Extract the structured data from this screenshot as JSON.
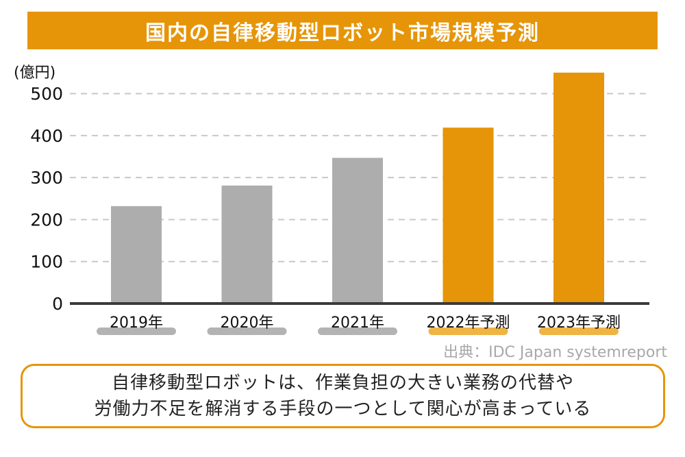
{
  "title": "国内の自律移動型ロボット市場規模予測",
  "unit": "(億円)",
  "source": "出典：IDC Japan systemreport",
  "callout": {
    "line1": "自律移動型ロボットは、作業負担の大きい業務の代替や",
    "line2": "労働力不足を解消する手段の一つとして関心が高まっている"
  },
  "colors": {
    "actual": "#adadad",
    "forecast": "#e69508",
    "actual_pill": "#b3b3b3",
    "forecast_pill": "#f0b445",
    "grid": "#c8c8c8",
    "axis": "#3a3a3a"
  },
  "chart_data": {
    "type": "bar",
    "title": "国内の自律移動型ロボット市場規模予測",
    "ylabel": "(億円)",
    "xlabel": "",
    "categories": [
      "2019年",
      "2020年",
      "2021年",
      "2022年予測",
      "2023年予測"
    ],
    "values": [
      232,
      281,
      347,
      419,
      550
    ],
    "kind": [
      "actual",
      "actual",
      "actual",
      "forecast",
      "forecast"
    ],
    "ylim": [
      0,
      550
    ],
    "yticks": [
      0,
      100,
      200,
      300,
      400,
      500
    ],
    "grid": true,
    "legend": "none"
  }
}
